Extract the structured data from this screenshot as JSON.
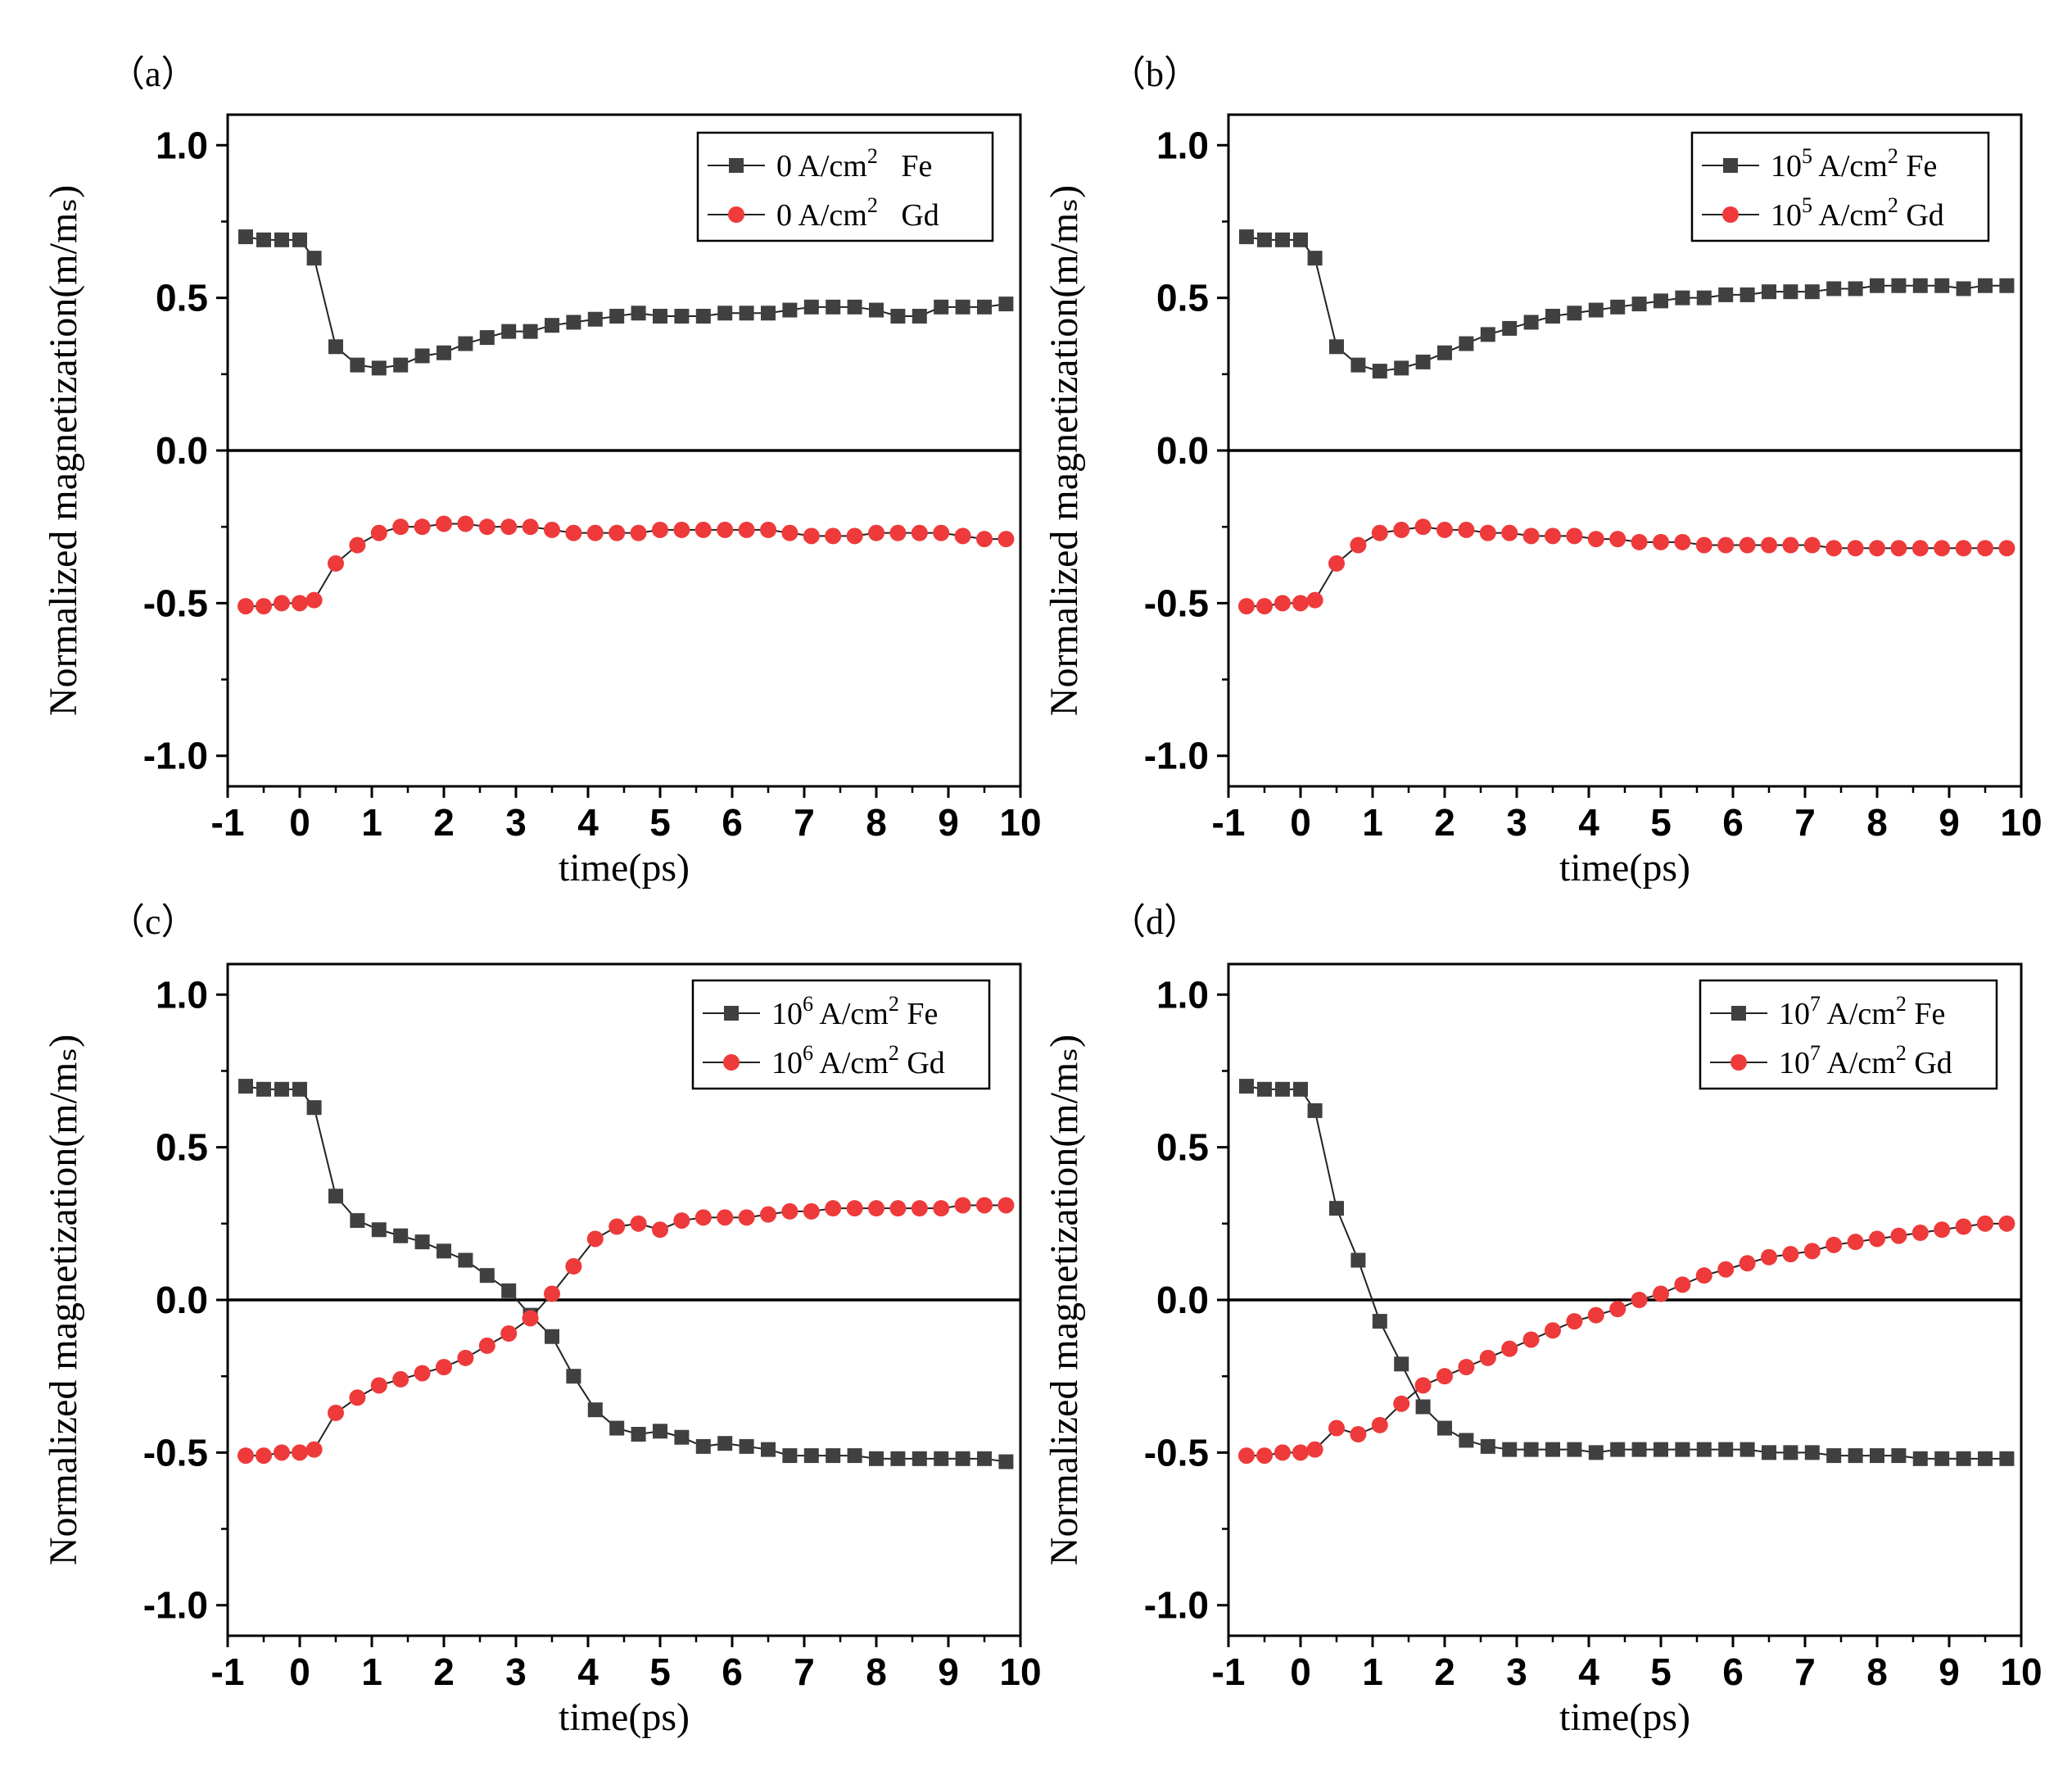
{
  "figure": {
    "panels": [
      "(a)",
      "(b)",
      "(c)",
      "(d)"
    ]
  },
  "chart_data": [
    {
      "panel_label": "(a)",
      "type": "line",
      "xlabel": "time(ps)",
      "ylabel": "Normalized magnetization(m/mₛ)",
      "xlim": [
        -1,
        10
      ],
      "ylim": [
        -1.1,
        1.1
      ],
      "xticks": [
        "-1",
        "0",
        "1",
        "2",
        "3",
        "4",
        "5",
        "6",
        "7",
        "8",
        "9",
        "10"
      ],
      "yticks": [
        "1.0",
        "0.5",
        "0.0",
        "-0.5",
        "-1.0"
      ],
      "zero_line": true,
      "legend": [
        {
          "prefix": "0 A/cm",
          "exp": "2",
          "species": "Fe"
        },
        {
          "prefix": "0 A/cm",
          "exp": "2",
          "species": "Gd"
        }
      ],
      "series": [
        {
          "name": "Fe",
          "color": "#404040",
          "marker": "square",
          "x": [
            -0.75,
            -0.5,
            -0.25,
            0,
            0.2,
            0.5,
            0.8,
            1.1,
            1.4,
            1.7,
            2.0,
            2.3,
            2.6,
            2.9,
            3.2,
            3.5,
            3.8,
            4.1,
            4.4,
            4.7,
            5.0,
            5.3,
            5.6,
            5.9,
            6.2,
            6.5,
            6.8,
            7.1,
            7.4,
            7.7,
            8.0,
            8.3,
            8.6,
            8.9,
            9.2,
            9.5,
            9.8
          ],
          "y": [
            0.7,
            0.69,
            0.69,
            0.69,
            0.63,
            0.34,
            0.28,
            0.27,
            0.28,
            0.31,
            0.32,
            0.35,
            0.37,
            0.39,
            0.39,
            0.41,
            0.42,
            0.43,
            0.44,
            0.45,
            0.44,
            0.44,
            0.44,
            0.45,
            0.45,
            0.45,
            0.46,
            0.47,
            0.47,
            0.47,
            0.46,
            0.44,
            0.44,
            0.47,
            0.47,
            0.47,
            0.48
          ]
        },
        {
          "name": "Gd",
          "color": "#ee3a3a",
          "marker": "circle",
          "x": [
            -0.75,
            -0.5,
            -0.25,
            0,
            0.2,
            0.5,
            0.8,
            1.1,
            1.4,
            1.7,
            2.0,
            2.3,
            2.6,
            2.9,
            3.2,
            3.5,
            3.8,
            4.1,
            4.4,
            4.7,
            5.0,
            5.3,
            5.6,
            5.9,
            6.2,
            6.5,
            6.8,
            7.1,
            7.4,
            7.7,
            8.0,
            8.3,
            8.6,
            8.9,
            9.2,
            9.5,
            9.8
          ],
          "y": [
            -0.51,
            -0.51,
            -0.5,
            -0.5,
            -0.49,
            -0.37,
            -0.31,
            -0.27,
            -0.25,
            -0.25,
            -0.24,
            -0.24,
            -0.25,
            -0.25,
            -0.25,
            -0.26,
            -0.27,
            -0.27,
            -0.27,
            -0.27,
            -0.26,
            -0.26,
            -0.26,
            -0.26,
            -0.26,
            -0.26,
            -0.27,
            -0.28,
            -0.28,
            -0.28,
            -0.27,
            -0.27,
            -0.27,
            -0.27,
            -0.28,
            -0.29,
            -0.29
          ]
        }
      ]
    },
    {
      "panel_label": "(b)",
      "type": "line",
      "xlabel": "time(ps)",
      "ylabel": "Normalized magnetization(m/mₛ)",
      "xlim": [
        -1,
        10
      ],
      "ylim": [
        -1.1,
        1.1
      ],
      "xticks": [
        "-1",
        "0",
        "1",
        "2",
        "3",
        "4",
        "5",
        "6",
        "7",
        "8",
        "9",
        "10"
      ],
      "yticks": [
        "1.0",
        "0.5",
        "0.0",
        "-0.5",
        "-1.0"
      ],
      "zero_line": true,
      "legend": [
        {
          "prefix": "10",
          "exp": "5",
          "unit": " A/cm",
          "exp2": "2",
          "species": "Fe"
        },
        {
          "prefix": "10",
          "exp": "5",
          "unit": " A/cm",
          "exp2": "2",
          "species": "Gd"
        }
      ],
      "series": [
        {
          "name": "Fe",
          "color": "#404040",
          "marker": "square",
          "x": [
            -0.75,
            -0.5,
            -0.25,
            0,
            0.2,
            0.5,
            0.8,
            1.1,
            1.4,
            1.7,
            2.0,
            2.3,
            2.6,
            2.9,
            3.2,
            3.5,
            3.8,
            4.1,
            4.4,
            4.7,
            5.0,
            5.3,
            5.6,
            5.9,
            6.2,
            6.5,
            6.8,
            7.1,
            7.4,
            7.7,
            8.0,
            8.3,
            8.6,
            8.9,
            9.2,
            9.5,
            9.8
          ],
          "y": [
            0.7,
            0.69,
            0.69,
            0.69,
            0.63,
            0.34,
            0.28,
            0.26,
            0.27,
            0.29,
            0.32,
            0.35,
            0.38,
            0.4,
            0.42,
            0.44,
            0.45,
            0.46,
            0.47,
            0.48,
            0.49,
            0.5,
            0.5,
            0.51,
            0.51,
            0.52,
            0.52,
            0.52,
            0.53,
            0.53,
            0.54,
            0.54,
            0.54,
            0.54,
            0.53,
            0.54,
            0.54
          ]
        },
        {
          "name": "Gd",
          "color": "#ee3a3a",
          "marker": "circle",
          "x": [
            -0.75,
            -0.5,
            -0.25,
            0,
            0.2,
            0.5,
            0.8,
            1.1,
            1.4,
            1.7,
            2.0,
            2.3,
            2.6,
            2.9,
            3.2,
            3.5,
            3.8,
            4.1,
            4.4,
            4.7,
            5.0,
            5.3,
            5.6,
            5.9,
            6.2,
            6.5,
            6.8,
            7.1,
            7.4,
            7.7,
            8.0,
            8.3,
            8.6,
            8.9,
            9.2,
            9.5,
            9.8
          ],
          "y": [
            -0.51,
            -0.51,
            -0.5,
            -0.5,
            -0.49,
            -0.37,
            -0.31,
            -0.27,
            -0.26,
            -0.25,
            -0.26,
            -0.26,
            -0.27,
            -0.27,
            -0.28,
            -0.28,
            -0.28,
            -0.29,
            -0.29,
            -0.3,
            -0.3,
            -0.3,
            -0.31,
            -0.31,
            -0.31,
            -0.31,
            -0.31,
            -0.31,
            -0.32,
            -0.32,
            -0.32,
            -0.32,
            -0.32,
            -0.32,
            -0.32,
            -0.32,
            -0.32
          ]
        }
      ]
    },
    {
      "panel_label": "(c)",
      "type": "line",
      "xlabel": "time(ps)",
      "ylabel": "Normalized magnetization(m/mₛ)",
      "xlim": [
        -1,
        10
      ],
      "ylim": [
        -1.1,
        1.1
      ],
      "xticks": [
        "-1",
        "0",
        "1",
        "2",
        "3",
        "4",
        "5",
        "6",
        "7",
        "8",
        "9",
        "10"
      ],
      "yticks": [
        "1.0",
        "0.5",
        "0.0",
        "-0.5",
        "-1.0"
      ],
      "zero_line": true,
      "legend": [
        {
          "prefix": "10",
          "exp": "6",
          "unit": " A/cm",
          "exp2": "2",
          "species": "Fe"
        },
        {
          "prefix": "10",
          "exp": "6",
          "unit": " A/cm",
          "exp2": "2",
          "species": "Gd"
        }
      ],
      "series": [
        {
          "name": "Fe",
          "color": "#404040",
          "marker": "square",
          "x": [
            -0.75,
            -0.5,
            -0.25,
            0,
            0.2,
            0.5,
            0.8,
            1.1,
            1.4,
            1.7,
            2.0,
            2.3,
            2.6,
            2.9,
            3.2,
            3.5,
            3.8,
            4.1,
            4.4,
            4.7,
            5.0,
            5.3,
            5.6,
            5.9,
            6.2,
            6.5,
            6.8,
            7.1,
            7.4,
            7.7,
            8.0,
            8.3,
            8.6,
            8.9,
            9.2,
            9.5,
            9.8
          ],
          "y": [
            0.7,
            0.69,
            0.69,
            0.69,
            0.63,
            0.34,
            0.26,
            0.23,
            0.21,
            0.19,
            0.16,
            0.13,
            0.08,
            0.03,
            -0.05,
            -0.12,
            -0.25,
            -0.36,
            -0.42,
            -0.44,
            -0.43,
            -0.45,
            -0.48,
            -0.47,
            -0.48,
            -0.49,
            -0.51,
            -0.51,
            -0.51,
            -0.51,
            -0.52,
            -0.52,
            -0.52,
            -0.52,
            -0.52,
            -0.52,
            -0.53
          ]
        },
        {
          "name": "Gd",
          "color": "#ee3a3a",
          "marker": "circle",
          "x": [
            -0.75,
            -0.5,
            -0.25,
            0,
            0.2,
            0.5,
            0.8,
            1.1,
            1.4,
            1.7,
            2.0,
            2.3,
            2.6,
            2.9,
            3.2,
            3.5,
            3.8,
            4.1,
            4.4,
            4.7,
            5.0,
            5.3,
            5.6,
            5.9,
            6.2,
            6.5,
            6.8,
            7.1,
            7.4,
            7.7,
            8.0,
            8.3,
            8.6,
            8.9,
            9.2,
            9.5,
            9.8
          ],
          "y": [
            -0.51,
            -0.51,
            -0.5,
            -0.5,
            -0.49,
            -0.37,
            -0.32,
            -0.28,
            -0.26,
            -0.24,
            -0.22,
            -0.19,
            -0.15,
            -0.11,
            -0.06,
            0.02,
            0.11,
            0.2,
            0.24,
            0.25,
            0.23,
            0.26,
            0.27,
            0.27,
            0.27,
            0.28,
            0.29,
            0.29,
            0.3,
            0.3,
            0.3,
            0.3,
            0.3,
            0.3,
            0.31,
            0.31,
            0.31
          ]
        }
      ]
    },
    {
      "panel_label": "(d)",
      "type": "line",
      "xlabel": "time(ps)",
      "ylabel": "Normalized magnetization(m/mₛ)",
      "xlim": [
        -1,
        10
      ],
      "ylim": [
        -1.1,
        1.1
      ],
      "xticks": [
        "-1",
        "0",
        "1",
        "2",
        "3",
        "4",
        "5",
        "6",
        "7",
        "8",
        "9",
        "10"
      ],
      "yticks": [
        "1.0",
        "0.5",
        "0.0",
        "-0.5",
        "-1.0"
      ],
      "zero_line": true,
      "legend": [
        {
          "prefix": "10",
          "exp": "7",
          "unit": " A/cm",
          "exp2": "2",
          "species": "Fe"
        },
        {
          "prefix": "10",
          "exp": "7",
          "unit": " A/cm",
          "exp2": "2",
          "species": "Gd"
        }
      ],
      "series": [
        {
          "name": "Fe",
          "color": "#404040",
          "marker": "square",
          "x": [
            -0.75,
            -0.5,
            -0.25,
            0,
            0.2,
            0.5,
            0.8,
            1.1,
            1.4,
            1.7,
            2.0,
            2.3,
            2.6,
            2.9,
            3.2,
            3.5,
            3.8,
            4.1,
            4.4,
            4.7,
            5.0,
            5.3,
            5.6,
            5.9,
            6.2,
            6.5,
            6.8,
            7.1,
            7.4,
            7.7,
            8.0,
            8.3,
            8.6,
            8.9,
            9.2,
            9.5,
            9.8
          ],
          "y": [
            0.7,
            0.69,
            0.69,
            0.69,
            0.62,
            0.3,
            0.13,
            -0.07,
            -0.21,
            -0.35,
            -0.42,
            -0.46,
            -0.48,
            -0.49,
            -0.49,
            -0.49,
            -0.49,
            -0.5,
            -0.49,
            -0.49,
            -0.49,
            -0.49,
            -0.49,
            -0.49,
            -0.49,
            -0.5,
            -0.5,
            -0.5,
            -0.51,
            -0.51,
            -0.51,
            -0.51,
            -0.52,
            -0.52,
            -0.52,
            -0.52,
            -0.52
          ]
        },
        {
          "name": "Gd",
          "color": "#ee3a3a",
          "marker": "circle",
          "x": [
            -0.75,
            -0.5,
            -0.25,
            0,
            0.2,
            0.5,
            0.8,
            1.1,
            1.4,
            1.7,
            2.0,
            2.3,
            2.6,
            2.9,
            3.2,
            3.5,
            3.8,
            4.1,
            4.4,
            4.7,
            5.0,
            5.3,
            5.6,
            5.9,
            6.2,
            6.5,
            6.8,
            7.1,
            7.4,
            7.7,
            8.0,
            8.3,
            8.6,
            8.9,
            9.2,
            9.5,
            9.8
          ],
          "y": [
            -0.51,
            -0.51,
            -0.5,
            -0.5,
            -0.49,
            -0.42,
            -0.44,
            -0.41,
            -0.34,
            -0.28,
            -0.25,
            -0.22,
            -0.19,
            -0.16,
            -0.13,
            -0.1,
            -0.07,
            -0.05,
            -0.03,
            0.0,
            0.02,
            0.05,
            0.08,
            0.1,
            0.12,
            0.14,
            0.15,
            0.16,
            0.18,
            0.19,
            0.2,
            0.21,
            0.22,
            0.23,
            0.24,
            0.25,
            0.25
          ]
        }
      ]
    }
  ]
}
